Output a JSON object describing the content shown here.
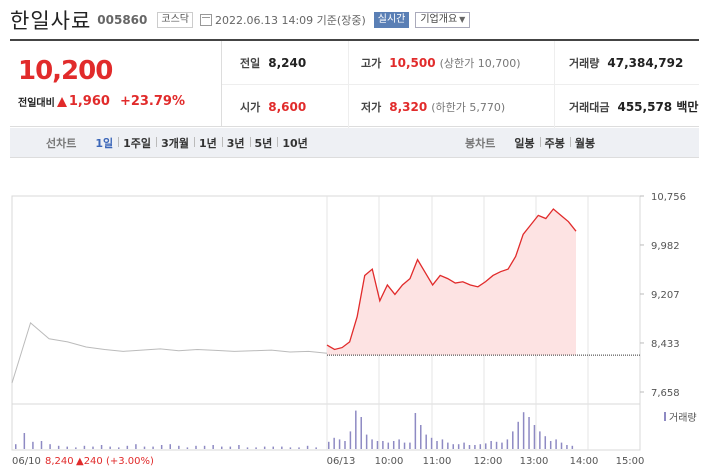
{
  "header": {
    "company": "한일사료",
    "code": "005860",
    "market": "코스닥",
    "timestamp": "2022.06.13 14:09 기준(장중)",
    "realtime": "실시간",
    "corp_info": "기업개요"
  },
  "quote": {
    "price": "10,200",
    "change_label": "전일대비",
    "change": "1,960",
    "change_pct": "+23.79%",
    "prev_close_label": "전일",
    "prev_close": "8,240",
    "high_label": "고가",
    "high": "10,500",
    "upper_limit": "(상한가 10,700)",
    "volume_label": "거래량",
    "volume": "47,384,792",
    "open_label": "시가",
    "open": "8,600",
    "low_label": "저가",
    "low": "8,320",
    "lower_limit": "(하한가 5,770)",
    "amount_label": "거래대금",
    "amount": "455,578 백만"
  },
  "tabs": {
    "line_label": "선차트",
    "line_tabs": [
      "1일",
      "1주일",
      "3개월",
      "1년",
      "3년",
      "5년",
      "10년"
    ],
    "candle_label": "봉차트",
    "candle_tabs": [
      "일봉",
      "주봉",
      "월봉"
    ],
    "active_line": 0
  },
  "colors": {
    "up": "#e12b2b",
    "area_fill": "#fde3e3",
    "prev_line": "#bbbbbb",
    "volume_bar": "#8e8ac3",
    "active_tab": "#3b66b8"
  },
  "chart_data": {
    "type": "line",
    "y_ticks": [
      "10,756",
      "9,982",
      "9,207",
      "8,433",
      "7,658"
    ],
    "ylim": [
      7658,
      10756
    ],
    "x_ticks": [
      "06/13",
      "10:00",
      "11:00",
      "12:00",
      "13:00",
      "14:00",
      "15:00"
    ],
    "prev_day_label": "06/10",
    "prev_day_summary": "8,240",
    "prev_day_change": "▲240 (+3.00%)",
    "volume_legend": "거래량",
    "baseline": 8240,
    "series": [
      {
        "values": [
          7800,
          8750,
          8500,
          8450,
          8370,
          8330,
          8300,
          8320,
          8340,
          8310,
          8330,
          8315,
          8300,
          8310,
          8320,
          8290,
          8300,
          8270
        ]
      },
      {
        "values": [
          8400,
          8330,
          8360,
          8450,
          8850,
          9500,
          9600,
          9100,
          9350,
          9200,
          9350,
          9450,
          9750,
          9550,
          9350,
          9500,
          9450,
          9380,
          9400,
          9350,
          9320,
          9400,
          9500,
          9560,
          9600,
          9800,
          10150,
          10300,
          10450,
          10400,
          10550,
          10450,
          10350,
          10200
        ]
      }
    ],
    "volume": {
      "prev_day": [
        6,
        20,
        9,
        10,
        6,
        4,
        3,
        2,
        4,
        3,
        5,
        3,
        2,
        4,
        6,
        3,
        3,
        5,
        6,
        4,
        2,
        4,
        4,
        5,
        3,
        3,
        5,
        2,
        2,
        3,
        3,
        3,
        2,
        2,
        4,
        2
      ],
      "today": [
        9,
        14,
        12,
        10,
        22,
        48,
        40,
        18,
        12,
        10,
        10,
        8,
        10,
        12,
        8,
        8,
        45,
        30,
        18,
        14,
        10,
        12,
        8,
        6,
        6,
        8,
        5,
        5,
        6,
        7,
        10,
        9,
        8,
        12,
        22,
        34,
        46,
        40,
        30,
        22,
        16,
        10,
        12,
        8,
        5,
        4
      ]
    }
  }
}
